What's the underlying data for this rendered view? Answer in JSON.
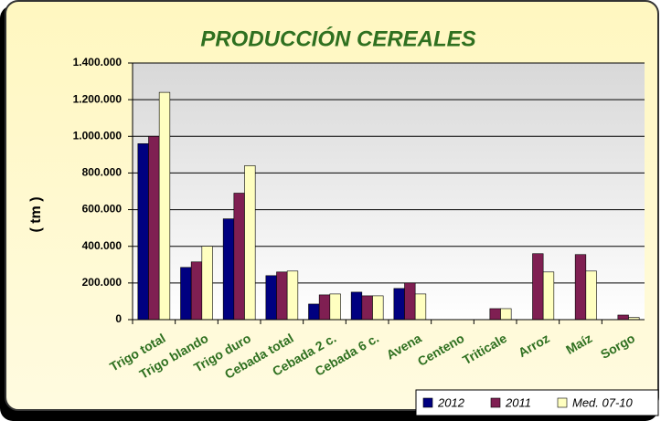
{
  "chart_data": {
    "type": "bar",
    "title": "PRODUCCIÓN CEREALES",
    "y_label": "( tm )",
    "categories": [
      "Trigo total",
      "Trigo blando",
      "Trigo duro",
      "Cebada total",
      "Cebada 2 c.",
      "Cebada 6 c.",
      "Avena",
      "Centeno",
      "Triticale",
      "Arroz",
      "Maíz",
      "Sorgo"
    ],
    "series": [
      {
        "name": "2012",
        "color": "#000080",
        "values": [
          960000,
          285000,
          550000,
          240000,
          85000,
          150000,
          170000,
          0,
          0,
          0,
          0,
          0
        ]
      },
      {
        "name": "2011",
        "color": "#7f1f52",
        "values": [
          1000000,
          315000,
          690000,
          260000,
          135000,
          130000,
          200000,
          0,
          60000,
          360000,
          355000,
          25000
        ]
      },
      {
        "name": "Med. 07-10",
        "color": "#ffffc0",
        "values": [
          1240000,
          400000,
          840000,
          265000,
          140000,
          130000,
          140000,
          0,
          60000,
          260000,
          265000,
          12000
        ]
      }
    ],
    "ylim": [
      0,
      1400000
    ],
    "yticks": [
      0,
      {
        "value": 200000,
        "label": "200.000"
      },
      {
        "value": 400000,
        "label": "400.000"
      },
      {
        "value": 600000,
        "label": "600.000"
      },
      {
        "value": 800000,
        "label": "800.000"
      },
      {
        "value": 1000000,
        "label": "1.000.000"
      },
      {
        "value": 1200000,
        "label": "1.200.000"
      },
      {
        "value": 1400000,
        "label": "1.400.000"
      }
    ],
    "grid": true,
    "legend": "bottom-right"
  }
}
